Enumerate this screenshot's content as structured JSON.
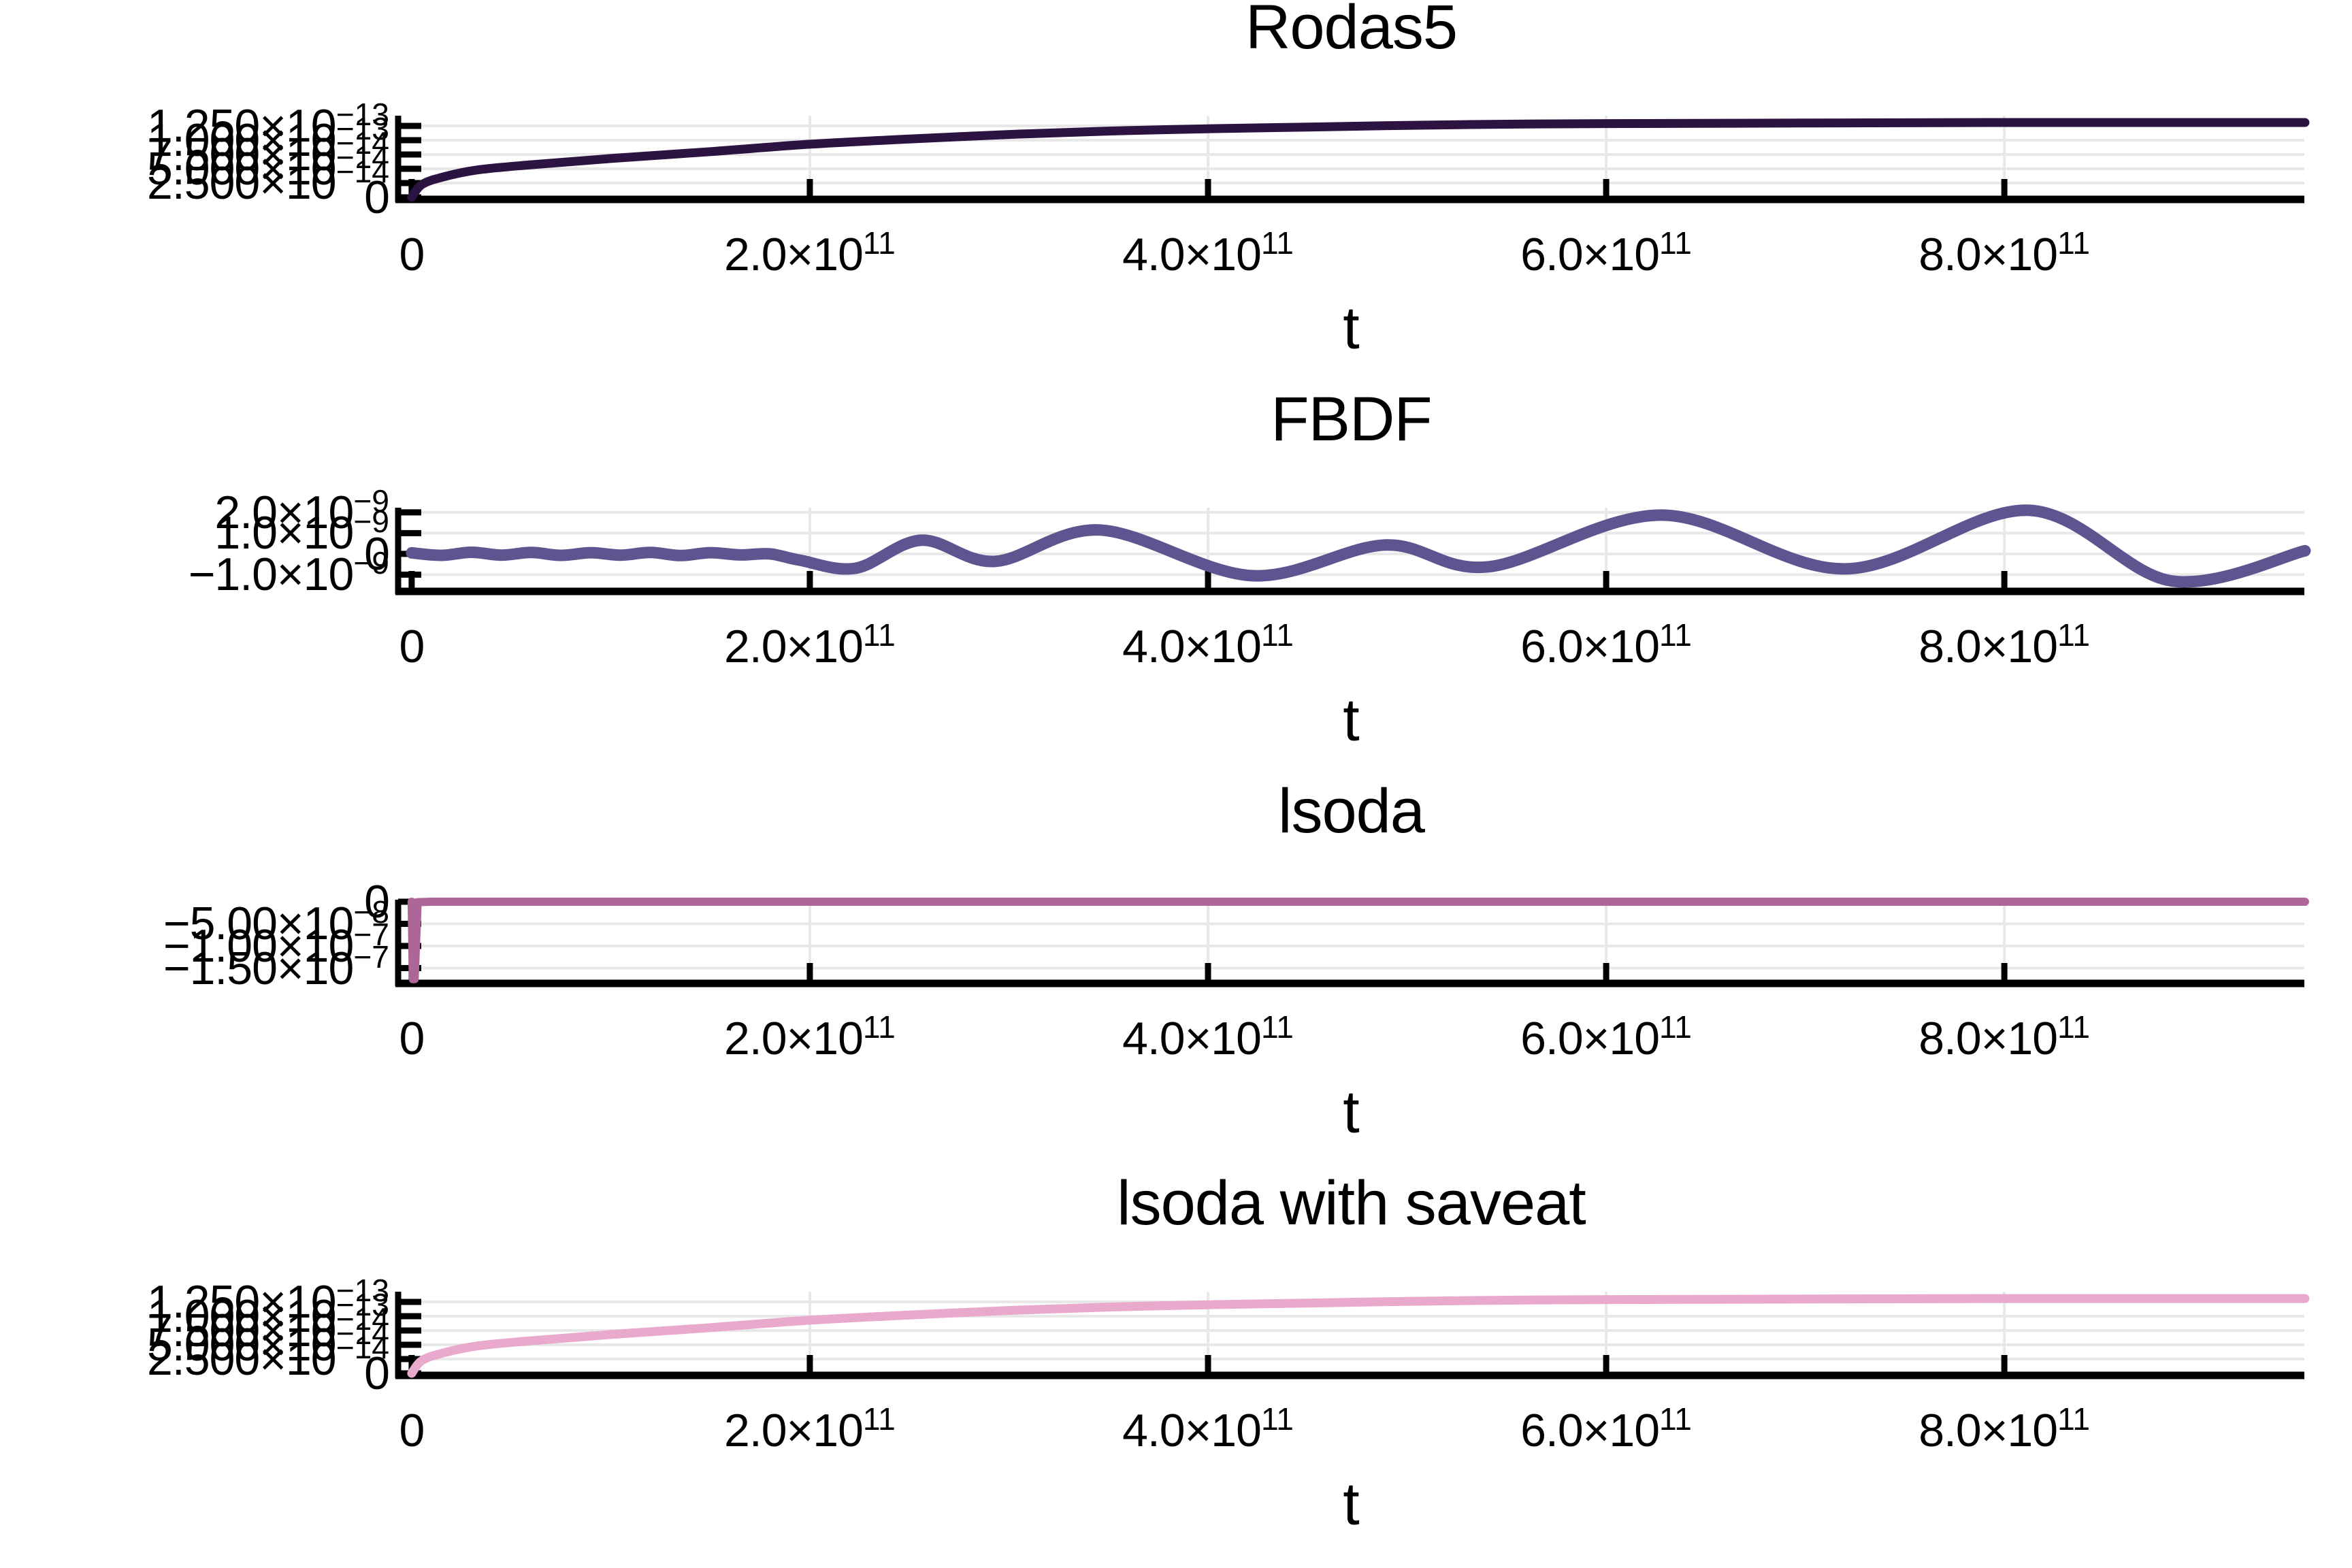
{
  "palette": {
    "background": "#ffffff",
    "axis": "#000000",
    "grid": "#e8e8e8",
    "text": "#000000",
    "series_rodas5": "#2d1342",
    "series_fbdf": "#5c5590",
    "series_lsoda": "#ae6598",
    "series_lsoda_saveat": "#e9a9cd"
  },
  "xaxis": {
    "label": "t",
    "ticks": [
      {
        "m": "0"
      },
      {
        "m": "2.0×10",
        "e": "11"
      },
      {
        "m": "4.0×10",
        "e": "11"
      },
      {
        "m": "6.0×10",
        "e": "11"
      },
      {
        "m": "8.0×10",
        "e": "11"
      }
    ]
  },
  "plots": [
    {
      "title": "Rodas5",
      "xlabel": "t",
      "yticks": [
        {
          "m": "0"
        },
        {
          "m": "2.500×10",
          "e": "−14"
        },
        {
          "m": "5.000×10",
          "e": "−14"
        },
        {
          "m": "7.500×10",
          "e": "−14"
        },
        {
          "m": "1.000×10",
          "e": "−13"
        },
        {
          "m": "1.250×10",
          "e": "−13"
        }
      ]
    },
    {
      "title": "FBDF",
      "xlabel": "t",
      "yticks": [
        {
          "m": "−1.0×10",
          "e": "−9"
        },
        {
          "m": "0"
        },
        {
          "m": "1.0×10",
          "e": "−9"
        },
        {
          "m": "2.0×10",
          "e": "−9"
        }
      ]
    },
    {
      "title": "lsoda",
      "xlabel": "t",
      "yticks": [
        {
          "m": "−1.50×10",
          "e": "−7"
        },
        {
          "m": "−1.00×10",
          "e": "−7"
        },
        {
          "m": "−5.00×10",
          "e": "−8"
        },
        {
          "m": "0"
        }
      ]
    },
    {
      "title": "lsoda with saveat",
      "xlabel": "t",
      "yticks": [
        {
          "m": "0"
        },
        {
          "m": "2.500×10",
          "e": "−14"
        },
        {
          "m": "5.000×10",
          "e": "−14"
        },
        {
          "m": "7.500×10",
          "e": "−14"
        },
        {
          "m": "1.000×10",
          "e": "−13"
        },
        {
          "m": "1.250×10",
          "e": "−13"
        }
      ]
    }
  ],
  "chart_data": [
    {
      "type": "line",
      "title": "Rodas5",
      "xlabel": "t",
      "ylabel": "",
      "legend": "none",
      "grid": true,
      "color": "#2d1342",
      "line_width": 13,
      "smooth": true,
      "xlim": [
        -6800000000.0,
        950700000000.0
      ],
      "ylim": [
        -3.57e-15,
        1.4286e-13
      ],
      "xtick_values": [
        0,
        200000000000.0,
        400000000000.0,
        600000000000.0,
        800000000000.0
      ],
      "ytick_values": [
        0,
        2.5e-14,
        5e-14,
        7.5e-14,
        1e-13,
        1.25e-13
      ],
      "x": [
        0,
        5000000000.0,
        15000000000.0,
        33000000000.0,
        60000000000.0,
        100000000000.0,
        150000000000.0,
        200000000000.0,
        250000000000.0,
        300000000000.0,
        350000000000.0,
        400000000000.0,
        450000000000.0,
        500000000000.0,
        550000000000.0,
        600000000000.0,
        700000000000.0,
        800000000000.0,
        900000000000.0,
        951000000000.0
      ],
      "y": [
        0,
        2.2e-14,
        3.5e-14,
        4.8e-14,
        5.7e-14,
        6.8e-14,
        8e-14,
        9.3e-14,
        1.02e-13,
        1.1e-13,
        1.16e-13,
        1.2e-13,
        1.23e-13,
        1.26e-13,
        1.28e-13,
        1.29e-13,
        1.3e-13,
        1.31e-13,
        1.31e-13,
        1.31e-13
      ]
    },
    {
      "type": "line",
      "title": "FBDF",
      "xlabel": "t",
      "ylabel": "",
      "legend": "none",
      "grid": true,
      "color": "#5c5590",
      "line_width": 17,
      "smooth": true,
      "xlim": [
        -6800000000.0,
        950700000000.0
      ],
      "ylim": [
        -1.806e-09,
        2.226e-09
      ],
      "xtick_values": [
        0,
        200000000000.0,
        400000000000.0,
        600000000000.0,
        800000000000.0
      ],
      "ytick_values": [
        -1e-09,
        0,
        1e-09,
        2e-09
      ],
      "x": [
        0,
        15000000000.0,
        30000000000.0,
        45000000000.0,
        60000000000.0,
        75000000000.0,
        90000000000.0,
        105000000000.0,
        120000000000.0,
        135000000000.0,
        150000000000.0,
        165000000000.0,
        180000000000.0,
        195000000000.0,
        223000000000.0,
        256000000000.0,
        293000000000.0,
        346000000000.0,
        422000000000.0,
        489000000000.0,
        541000000000.0,
        628000000000.0,
        720000000000.0,
        812000000000.0,
        884000000000.0,
        951000000000.0
      ],
      "y": [
        5e-11,
        -7e-11,
        8e-11,
        -6e-11,
        7e-11,
        -7e-11,
        6e-11,
        -6e-11,
        7e-11,
        -8e-11,
        6e-11,
        -5e-11,
        0,
        -3e-10,
        -6.9e-10,
        6.6e-10,
        -3.6e-10,
        1.15e-09,
        -1.05e-09,
        4.3e-10,
        -6.2e-10,
        1.87e-09,
        -7.2e-10,
        2.1e-09,
        -1.3e-09,
        1.5e-10
      ]
    },
    {
      "type": "line",
      "title": "lsoda",
      "xlabel": "t",
      "ylabel": "",
      "legend": "none",
      "grid": true,
      "color": "#ae6598",
      "line_width": 12,
      "smooth": false,
      "xlim": [
        -6800000000.0,
        950700000000.0
      ],
      "ylim": [
        -1.846e-07,
        4.6e-09
      ],
      "xtick_values": [
        0,
        200000000000.0,
        400000000000.0,
        600000000000.0,
        800000000000.0
      ],
      "ytick_values": [
        -1.5e-07,
        -1e-07,
        -5e-08,
        0
      ],
      "x": [
        0,
        600000000.0,
        1500000000.0,
        3000000000.0,
        10000000000.0,
        951000000000.0
      ],
      "y": [
        0,
        -1.75e-07,
        -1.75e-07,
        -1e-09,
        0,
        0
      ]
    },
    {
      "type": "line",
      "title": "lsoda with saveat",
      "xlabel": "t",
      "ylabel": "",
      "legend": "none",
      "grid": true,
      "color": "#e9a9cd",
      "line_width": 13,
      "smooth": true,
      "xlim": [
        -6800000000.0,
        950700000000.0
      ],
      "ylim": [
        -3.57e-15,
        1.4286e-13
      ],
      "xtick_values": [
        0,
        200000000000.0,
        400000000000.0,
        600000000000.0,
        800000000000.0
      ],
      "ytick_values": [
        0,
        2.5e-14,
        5e-14,
        7.5e-14,
        1e-13,
        1.25e-13
      ],
      "x": [
        0,
        5000000000.0,
        15000000000.0,
        33000000000.0,
        60000000000.0,
        100000000000.0,
        150000000000.0,
        200000000000.0,
        250000000000.0,
        300000000000.0,
        350000000000.0,
        400000000000.0,
        450000000000.0,
        500000000000.0,
        550000000000.0,
        600000000000.0,
        700000000000.0,
        800000000000.0,
        900000000000.0,
        951000000000.0
      ],
      "y": [
        0,
        2.2e-14,
        3.5e-14,
        4.8e-14,
        5.7e-14,
        6.8e-14,
        8e-14,
        9.3e-14,
        1.02e-13,
        1.1e-13,
        1.16e-13,
        1.2e-13,
        1.23e-13,
        1.26e-13,
        1.28e-13,
        1.29e-13,
        1.3e-13,
        1.31e-13,
        1.31e-13,
        1.31e-13
      ]
    }
  ]
}
